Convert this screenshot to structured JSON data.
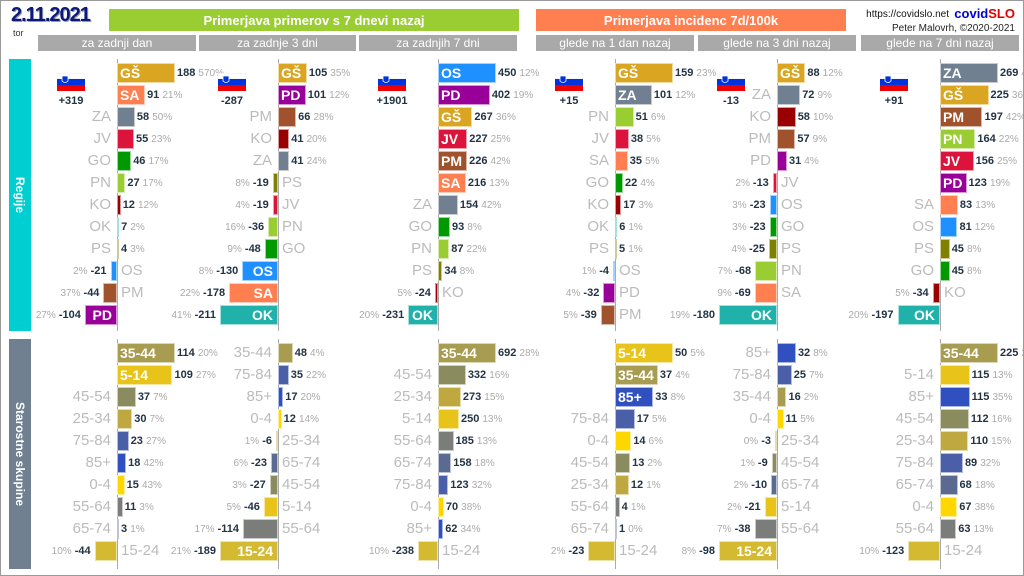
{
  "header": {
    "date": "2.11.2021",
    "weekday": "tor",
    "banner_cases": "Primerjava primerov s 7 dnevi nazaj",
    "banner_incidence": "Primerjava incidenc 7d/100k",
    "url": "https://covidslo.net",
    "brand_a": "covid",
    "brand_b": "SLO",
    "author": "Peter Malovrh, ©2020-2021"
  },
  "side_labels": {
    "regions": "Regije",
    "ages": "Starostne skupine"
  },
  "colors": {
    "banner_cases": "#9ACD32",
    "banner_incidence": "#FF7F50",
    "subheader": "#A9A9A9",
    "side_regions": "#00CED1",
    "side_ages": "#708090",
    "GŠ": "#DAA520",
    "SA": "#FF7F50",
    "ZA": "#708090",
    "JV": "#DC143C",
    "GO": "#009900",
    "PN": "#9ACD32",
    "KO": "#990000",
    "OK": "#20B2AA",
    "PS": "#808000",
    "OS": "#1E90FF",
    "PM": "#A0522D",
    "PD": "#990099",
    "35-44": "#A89C50",
    "5-14": "#E8C41A",
    "45-54": "#8B8B60",
    "25-34": "#BFA840",
    "75-84": "#4A5FA8",
    "85+": "#3050C0",
    "0-4": "#FFD700",
    "55-64": "#7A7D7A",
    "65-74": "#5A6A90",
    "15-24": "#D4BA30"
  },
  "chart_data": {
    "type": "bar",
    "orientation": "horizontal diverging",
    "panels": [
      {
        "header": "za zadnji dan",
        "group": "Primerjava primerov s 7 dnevi nazaj",
        "total": "+319",
        "regions": [
          [
            "GŠ",
            188,
            "570%"
          ],
          [
            "SA",
            91,
            "21%"
          ],
          [
            "ZA",
            58,
            "50%"
          ],
          [
            "JV",
            55,
            "23%"
          ],
          [
            "GO",
            46,
            "17%"
          ],
          [
            "PN",
            27,
            "17%"
          ],
          [
            "KO",
            12,
            "12%"
          ],
          [
            "OK",
            7,
            "2%"
          ],
          [
            "PS",
            4,
            "3%"
          ],
          [
            "OS",
            -21,
            "2%"
          ],
          [
            "PM",
            -44,
            "37%"
          ],
          [
            "PD",
            -104,
            "27%"
          ]
        ],
        "ages": [
          [
            "35-44",
            114,
            "20%"
          ],
          [
            "5-14",
            109,
            "27%"
          ],
          [
            "45-54",
            37,
            "7%"
          ],
          [
            "25-34",
            30,
            "7%"
          ],
          [
            "75-84",
            23,
            "27%"
          ],
          [
            "85+",
            18,
            "42%"
          ],
          [
            "0-4",
            15,
            "43%"
          ],
          [
            "55-64",
            11,
            "3%"
          ],
          [
            "65-74",
            3,
            "1%"
          ],
          [
            "15-24",
            -44,
            "10%"
          ]
        ]
      },
      {
        "header": "za zadnje 3 dni",
        "group": "Primerjava primerov s 7 dnevi nazaj",
        "total": "-287",
        "regions": [
          [
            "GŠ",
            105,
            "35%"
          ],
          [
            "PD",
            101,
            "12%"
          ],
          [
            "PM",
            66,
            "28%"
          ],
          [
            "KO",
            41,
            "20%"
          ],
          [
            "ZA",
            41,
            "24%"
          ],
          [
            "PS",
            -19,
            "8%"
          ],
          [
            "JV",
            -19,
            "4%"
          ],
          [
            "PN",
            -36,
            "16%"
          ],
          [
            "GO",
            -48,
            "9%"
          ],
          [
            "OS",
            -130,
            "8%"
          ],
          [
            "SA",
            -178,
            "22%"
          ],
          [
            "OK",
            -211,
            "41%"
          ]
        ],
        "ages": [
          [
            "35-44",
            48,
            "4%"
          ],
          [
            "75-84",
            35,
            "22%"
          ],
          [
            "85+",
            17,
            "20%"
          ],
          [
            "0-4",
            12,
            "14%"
          ],
          [
            "25-34",
            -6,
            "1%"
          ],
          [
            "65-74",
            -23,
            "6%"
          ],
          [
            "45-54",
            -27,
            "3%"
          ],
          [
            "5-14",
            -46,
            "5%"
          ],
          [
            "55-64",
            -114,
            "17%"
          ],
          [
            "15-24",
            -189,
            "21%"
          ]
        ]
      },
      {
        "header": "za zadnjih 7 dni",
        "group": "Primerjava primerov s 7 dnevi nazaj",
        "total": "+1901",
        "regions": [
          [
            "OS",
            450,
            "12%"
          ],
          [
            "PD",
            402,
            "19%"
          ],
          [
            "GŠ",
            267,
            "36%"
          ],
          [
            "JV",
            227,
            "25%"
          ],
          [
            "PM",
            226,
            "42%"
          ],
          [
            "SA",
            216,
            "13%"
          ],
          [
            "ZA",
            154,
            "42%"
          ],
          [
            "GO",
            93,
            "8%"
          ],
          [
            "PN",
            87,
            "22%"
          ],
          [
            "PS",
            34,
            "8%"
          ],
          [
            "KO",
            -24,
            "5%"
          ],
          [
            "OK",
            -231,
            "20%"
          ]
        ],
        "ages": [
          [
            "35-44",
            692,
            "28%"
          ],
          [
            "45-54",
            332,
            "16%"
          ],
          [
            "25-34",
            273,
            "15%"
          ],
          [
            "5-14",
            250,
            "13%"
          ],
          [
            "55-64",
            185,
            "13%"
          ],
          [
            "65-74",
            158,
            "18%"
          ],
          [
            "75-84",
            123,
            "32%"
          ],
          [
            "0-4",
            70,
            "38%"
          ],
          [
            "85+",
            62,
            "34%"
          ],
          [
            "15-24",
            -238,
            "10%"
          ]
        ]
      },
      {
        "header": "glede na 1 dan nazaj",
        "group": "Primerjava incidenc 7d/100k",
        "total": "+15",
        "regions": [
          [
            "GŠ",
            159,
            "23%"
          ],
          [
            "ZA",
            101,
            "12%"
          ],
          [
            "PN",
            51,
            "6%"
          ],
          [
            "JV",
            38,
            "5%"
          ],
          [
            "SA",
            35,
            "5%"
          ],
          [
            "GO",
            22,
            "4%"
          ],
          [
            "KO",
            17,
            "3%"
          ],
          [
            "OK",
            6,
            "1%"
          ],
          [
            "PS",
            5,
            "1%"
          ],
          [
            "OS",
            -4,
            "1%"
          ],
          [
            "PD",
            -32,
            "4%"
          ],
          [
            "PM",
            -39,
            "5%"
          ]
        ],
        "ages": [
          [
            "5-14",
            50,
            "5%"
          ],
          [
            "35-44",
            37,
            "4%"
          ],
          [
            "85+",
            33,
            "8%"
          ],
          [
            "75-84",
            17,
            "5%"
          ],
          [
            "0-4",
            14,
            "6%"
          ],
          [
            "45-54",
            13,
            "2%"
          ],
          [
            "25-34",
            12,
            "1%"
          ],
          [
            "55-64",
            4,
            "1%"
          ],
          [
            "65-74",
            1,
            "0%"
          ],
          [
            "15-24",
            -23,
            "2%"
          ]
        ]
      },
      {
        "header": "glede na 3 dni nazaj",
        "group": "Primerjava incidenc 7d/100k",
        "total": "-13",
        "regions": [
          [
            "GŠ",
            88,
            "12%"
          ],
          [
            "ZA",
            72,
            "9%"
          ],
          [
            "KO",
            58,
            "10%"
          ],
          [
            "PM",
            57,
            "9%"
          ],
          [
            "PD",
            31,
            "4%"
          ],
          [
            "JV",
            -13,
            "2%"
          ],
          [
            "OS",
            -23,
            "3%"
          ],
          [
            "GO",
            -23,
            "3%"
          ],
          [
            "PS",
            -25,
            "4%"
          ],
          [
            "PN",
            -68,
            "7%"
          ],
          [
            "SA",
            -69,
            "9%"
          ],
          [
            "OK",
            -180,
            "19%"
          ]
        ],
        "ages": [
          [
            "85+",
            32,
            "8%"
          ],
          [
            "75-84",
            25,
            "7%"
          ],
          [
            "35-44",
            16,
            "2%"
          ],
          [
            "0-4",
            11,
            "5%"
          ],
          [
            "25-34",
            -3,
            "0%"
          ],
          [
            "45-54",
            -9,
            "1%"
          ],
          [
            "65-74",
            -10,
            "2%"
          ],
          [
            "5-14",
            -21,
            "2%"
          ],
          [
            "55-64",
            -38,
            "7%"
          ],
          [
            "15-24",
            -98,
            "8%"
          ]
        ]
      },
      {
        "header": "glede na 7 dni nazaj",
        "group": "Primerjava incidenc 7d/100k",
        "total": "+91",
        "regions": [
          [
            "ZA",
            269,
            "42%"
          ],
          [
            "GŠ",
            225,
            "36%"
          ],
          [
            "PM",
            197,
            "42%"
          ],
          [
            "PN",
            164,
            "22%"
          ],
          [
            "JV",
            156,
            "25%"
          ],
          [
            "PD",
            123,
            "19%"
          ],
          [
            "SA",
            83,
            "13%"
          ],
          [
            "OS",
            81,
            "12%"
          ],
          [
            "PS",
            45,
            "8%"
          ],
          [
            "GO",
            45,
            "8%"
          ],
          [
            "KO",
            -34,
            "5%"
          ],
          [
            "OK",
            -197,
            "20%"
          ]
        ],
        "ages": [
          [
            "35-44",
            225,
            "28%"
          ],
          [
            "5-14",
            115,
            "13%"
          ],
          [
            "85+",
            115,
            "35%"
          ],
          [
            "45-54",
            112,
            "16%"
          ],
          [
            "25-34",
            110,
            "15%"
          ],
          [
            "75-84",
            89,
            "32%"
          ],
          [
            "65-74",
            68,
            "18%"
          ],
          [
            "0-4",
            67,
            "38%"
          ],
          [
            "55-64",
            63,
            "13%"
          ],
          [
            "15-24",
            -123,
            "10%"
          ]
        ]
      }
    ]
  }
}
